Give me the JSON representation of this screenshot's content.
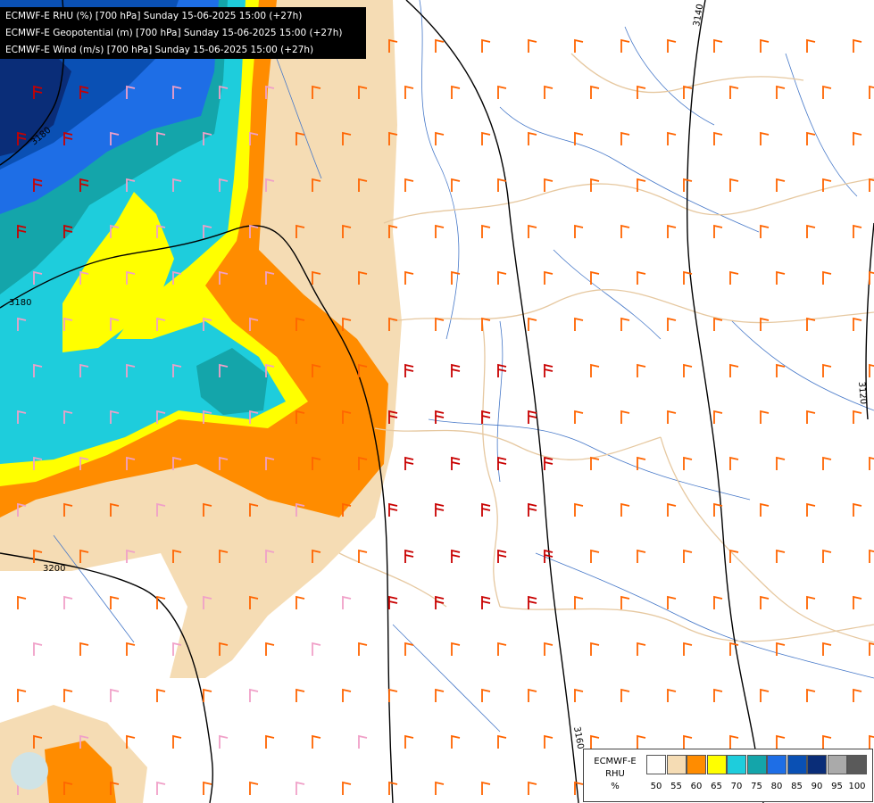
{
  "header": {
    "line1": "ECMWF-E RHU (%) [700 hPa] Sunday 15-06-2025 15:00 (+27h)",
    "line2": "ECMWF-E Geopotential (m) [700 hPa] Sunday 15-06-2025 15:00 (+27h)",
    "line3": "ECMWF-E Wind (m/s) [700 hPa] Sunday 15-06-2025 15:00 (+27h)"
  },
  "contour_labels": [
    "3140",
    "3160",
    "3180",
    "3180",
    "3200",
    "3120"
  ],
  "legend": {
    "model": "ECMWF-E",
    "param": "RHU",
    "unit": "%",
    "levels": [
      "50",
      "55",
      "60",
      "65",
      "70",
      "75",
      "80",
      "85",
      "90",
      "95",
      "100"
    ],
    "colors": [
      "#ffffff",
      "#f5dcb4",
      "#ff8c00",
      "#ffff00",
      "#1ecddc",
      "#14a5aa",
      "#1e6ee6",
      "#0a50b4",
      "#0a2d78",
      "#aaaaaa",
      "#5a5a5a"
    ]
  },
  "colors": {
    "geopotential_line": "#000000",
    "border": "#e6c8a0",
    "river": "#4678c8",
    "wind_light": "#f0a0c8",
    "wind_medium": "#ff6400",
    "wind_strong": "#c80000"
  }
}
